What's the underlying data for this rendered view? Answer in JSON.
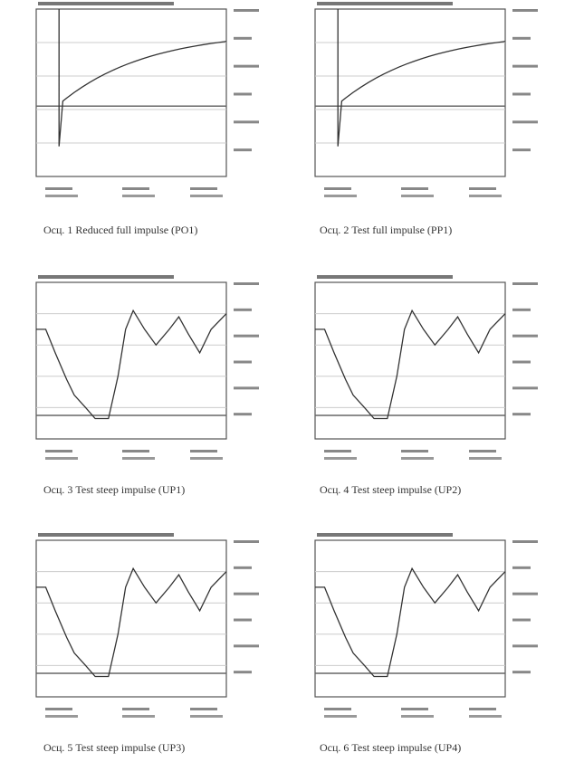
{
  "figures": [
    {
      "caption": "Осц. 1  Reduced full impulse (PO1)"
    },
    {
      "caption": "Осц. 2  Test full impulse (PP1)"
    },
    {
      "caption": "Осц. 3  Test steep impulse (UP1)"
    },
    {
      "caption": "Осц. 4  Test steep impulse (UP2)"
    },
    {
      "caption": "Осц. 5  Test steep impulse (UP3)"
    },
    {
      "caption": "Осц. 6  Test steep impulse (UP4)"
    }
  ]
}
